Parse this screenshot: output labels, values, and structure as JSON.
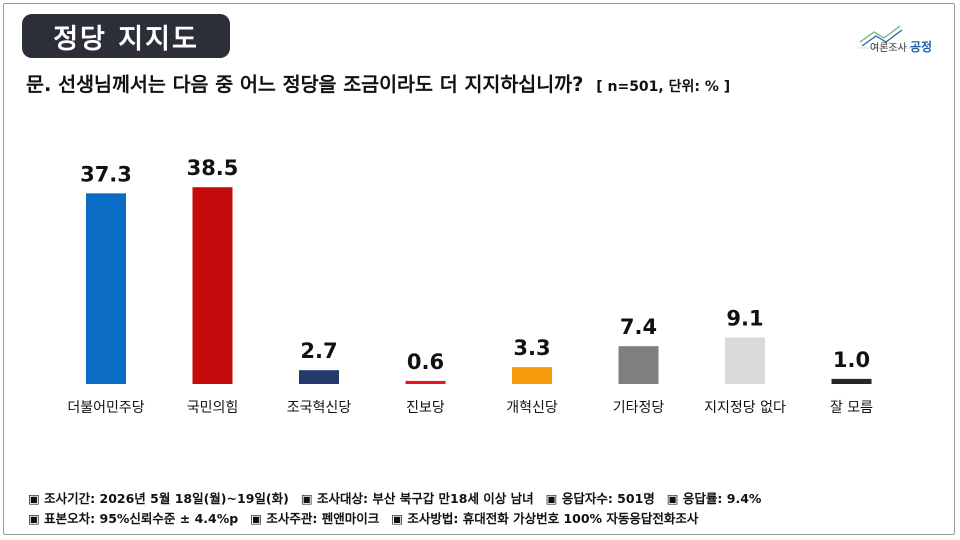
{
  "header": {
    "title": "정당 지지도",
    "question": "문. 선생님께서는 다음 중 어느 정당을 조금이라도 더 지지하십니까?",
    "unit_note": "[ n=501, 단위: % ]",
    "logo_text": "여론조사",
    "logo_brand": "공정"
  },
  "chart_data": {
    "type": "bar",
    "title": "",
    "xlabel": "",
    "ylabel": "",
    "ylim": [
      0,
      45
    ],
    "grid": false,
    "categories": [
      "더불어민주당",
      "국민의힘",
      "조국혁신당",
      "진보당",
      "개혁신당",
      "기타정당",
      "지지정당 없다",
      "잘 모름"
    ],
    "values": [
      37.3,
      38.5,
      2.7,
      0.6,
      3.3,
      7.4,
      9.1,
      1.0
    ],
    "value_labels": [
      "37.3",
      "38.5",
      "2.7",
      "0.6",
      "3.3",
      "7.4",
      "9.1",
      "1.0"
    ],
    "colors": [
      "#0a6cc4",
      "#c40a0a",
      "#243a6b",
      "#e8141e",
      "#f59a0a",
      "#7f7f7f",
      "#d9d9d9",
      "#262626"
    ]
  },
  "footer": {
    "row1": [
      "▣ 조사기간: 2026년 5월 18일(월)~19일(화)",
      "▣ 조사대상: 부산 북구갑 만18세 이상 남녀",
      "▣ 응답자수: 501명",
      "▣ 응답률: 9.4%"
    ],
    "row2": [
      "▣ 표본오차: 95%신뢰수준 ± 4.4%p",
      "▣ 조사주관: 펜앤마이크",
      "▣ 조사방법: 휴대전화 가상번호 100% 자동응답전화조사"
    ]
  }
}
